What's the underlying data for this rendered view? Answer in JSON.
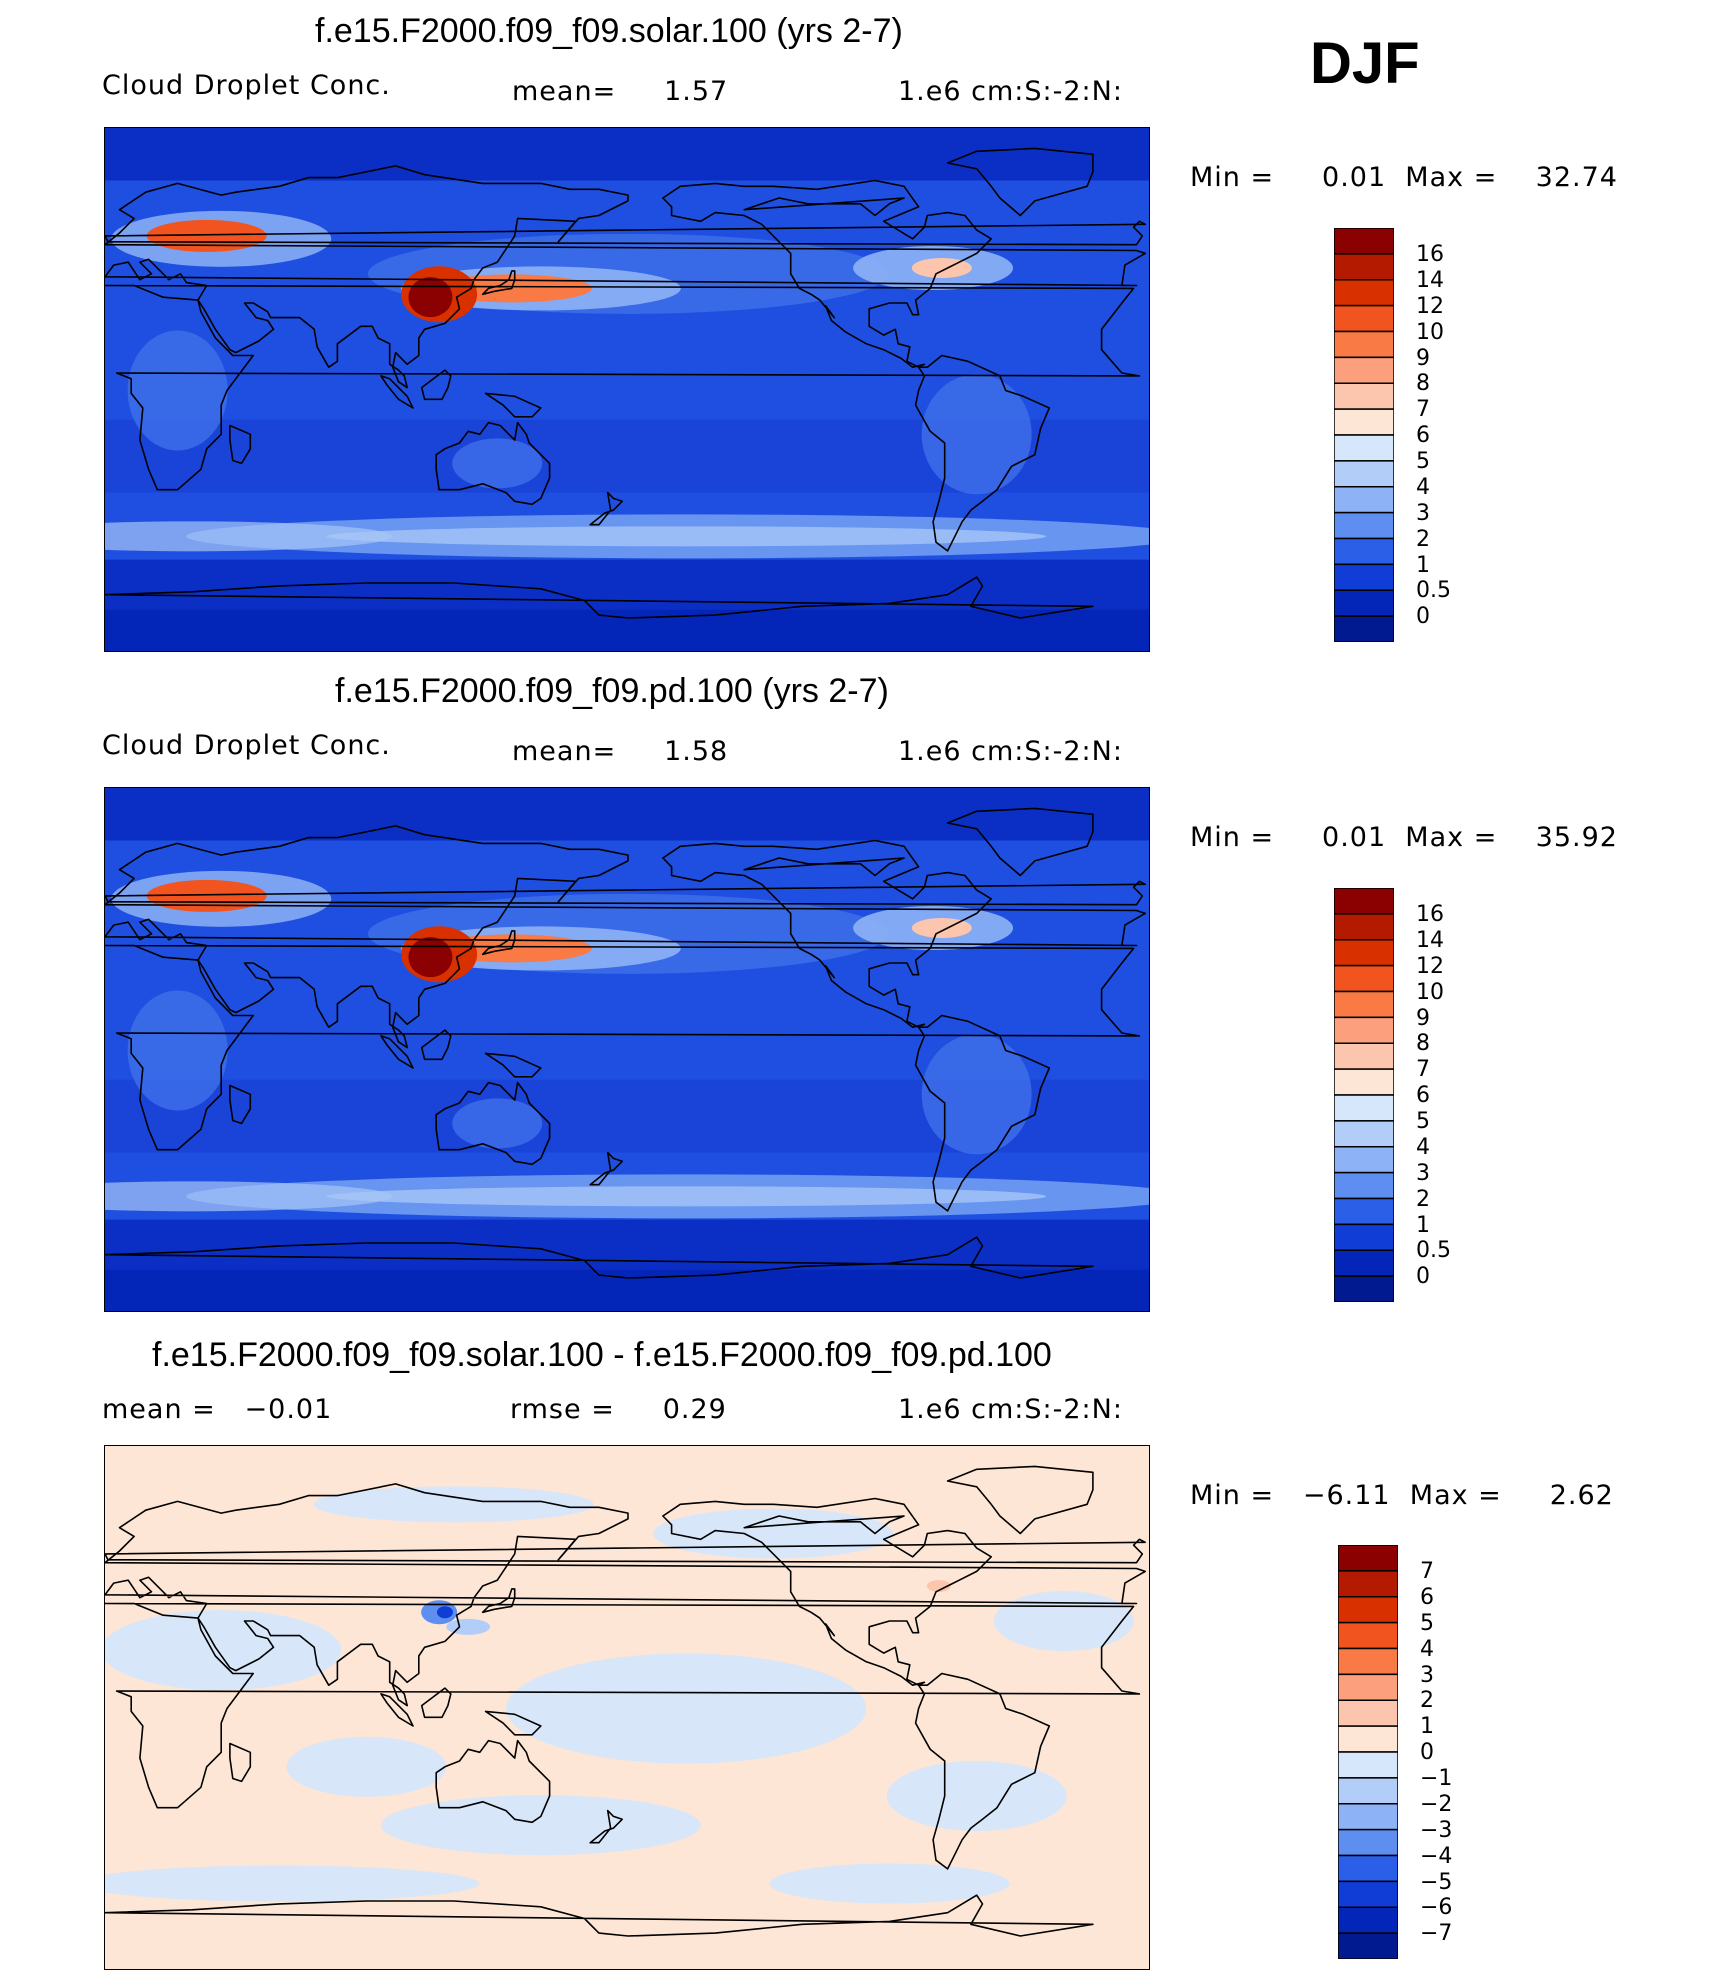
{
  "season": "DJF",
  "panels": [
    {
      "title": "f.e15.F2000.f09_f09.solar.100 (yrs 2-7)",
      "variable": "Cloud Droplet Conc.",
      "stat": "mean=     1.57",
      "units": "1.e6 cm:S:-2:N:",
      "minmax": "Min =     0.01  Max =    32.74",
      "palette": "abs",
      "levels": [
        "16",
        "14",
        "12",
        "10",
        "9",
        "8",
        "7",
        "6",
        "5",
        "4",
        "3",
        "2",
        "1",
        "0.5",
        "0"
      ]
    },
    {
      "title": "f.e15.F2000.f09_f09.pd.100 (yrs 2-7)",
      "variable": "Cloud Droplet Conc.",
      "stat": "mean=     1.58",
      "units": "1.e6 cm:S:-2:N:",
      "minmax": "Min =     0.01  Max =    35.92",
      "palette": "abs",
      "levels": [
        "16",
        "14",
        "12",
        "10",
        "9",
        "8",
        "7",
        "6",
        "5",
        "4",
        "3",
        "2",
        "1",
        "0.5",
        "0"
      ]
    },
    {
      "title": "f.e15.F2000.f09_f09.solar.100 - f.e15.F2000.f09_f09.pd.100",
      "variable": "mean =   −0.01",
      "stat": "rmse =     0.29",
      "units": "1.e6 cm:S:-2:N:",
      "minmax": "Min =   −6.11  Max =     2.62",
      "palette": "diff",
      "levels": [
        "7",
        "6",
        "5",
        "4",
        "3",
        "2",
        "1",
        "0",
        "−1",
        "−2",
        "−3",
        "−4",
        "−5",
        "−6",
        "−7"
      ]
    }
  ],
  "colors": {
    "abs": [
      "#8b0000",
      "#b31a00",
      "#d93000",
      "#f2541f",
      "#fa7a45",
      "#fb9f7c",
      "#fcc6ae",
      "#fde6d5",
      "#d6e6fb",
      "#b2cdf7",
      "#8db2f5",
      "#5e8ef0",
      "#2b5fe8",
      "#0f3dd6",
      "#0426b8",
      "#021a8f"
    ],
    "diff": [
      "#8b0000",
      "#b31a00",
      "#d93000",
      "#f2541f",
      "#fa7a45",
      "#fb9f7c",
      "#fcc6ae",
      "#fde6d5",
      "#d6e6fb",
      "#b2cdf7",
      "#8db2f5",
      "#5e8ef0",
      "#2b5fe8",
      "#0f3dd6",
      "#0426b8",
      "#021a8f"
    ]
  }
}
